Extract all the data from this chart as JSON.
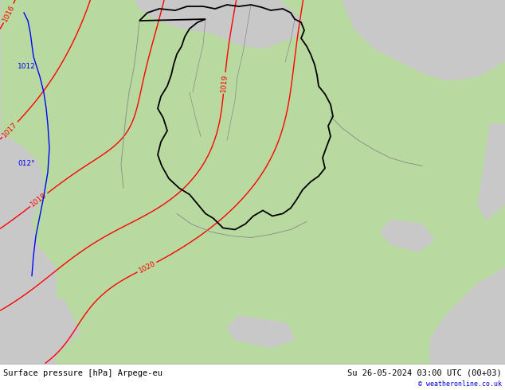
{
  "title_left": "Surface pressure [hPa] Arpege-eu",
  "title_right": "Su 26-05-2024 03:00 UTC (00+03)",
  "copyright": "© weatheronline.co.uk",
  "bg_color": "#ffffff",
  "map_bg_green": "#b8d9a0",
  "map_bg_gray": "#c8c8c8",
  "isobar_color": "#ff0000",
  "border_color": "#000000",
  "blue_line_color": "#0000ff",
  "black_line_color": "#000000",
  "gray_border_color": "#888888",
  "label_fontsize": 6.5,
  "footer_fontsize": 7.5,
  "isobar_linewidth": 1.0,
  "border_linewidth": 1.3,
  "fig_width": 6.34,
  "fig_height": 4.9,
  "dpi": 100
}
